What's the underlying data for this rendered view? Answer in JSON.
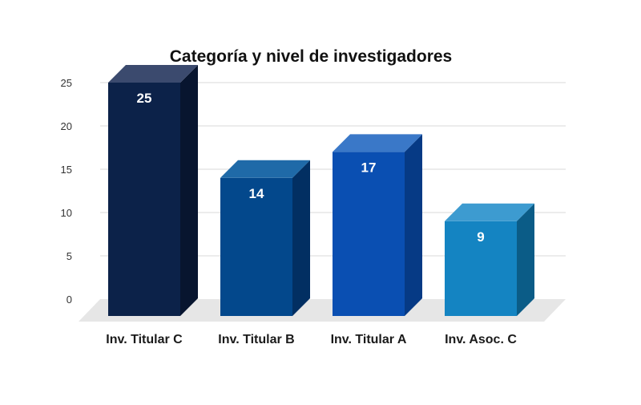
{
  "chart_data": {
    "type": "bar",
    "title": "Categoría y nivel de investigadores",
    "categories": [
      "Inv. Titular C",
      "Inv. Titular B",
      "Inv. Titular A",
      "Inv. Asoc. C"
    ],
    "values": [
      25,
      14,
      17,
      9
    ],
    "data_labels": [
      "25",
      "14",
      "17",
      "9"
    ],
    "ylim": [
      0,
      25
    ],
    "yticks": [
      0,
      5,
      10,
      15,
      20,
      25
    ],
    "grid": true,
    "style": "3d-column",
    "colors": {
      "front": [
        "#0c2249",
        "#03488c",
        "#0a4fb2",
        "#1484c2"
      ],
      "top": [
        "#3b4a6e",
        "#1f6aa8",
        "#3a78c8",
        "#3d9bd0"
      ],
      "side": [
        "#08152f",
        "#022f62",
        "#063a85",
        "#0b5c87"
      ],
      "floor": "#e6e6e6",
      "grid": "#d9d9d9"
    }
  }
}
